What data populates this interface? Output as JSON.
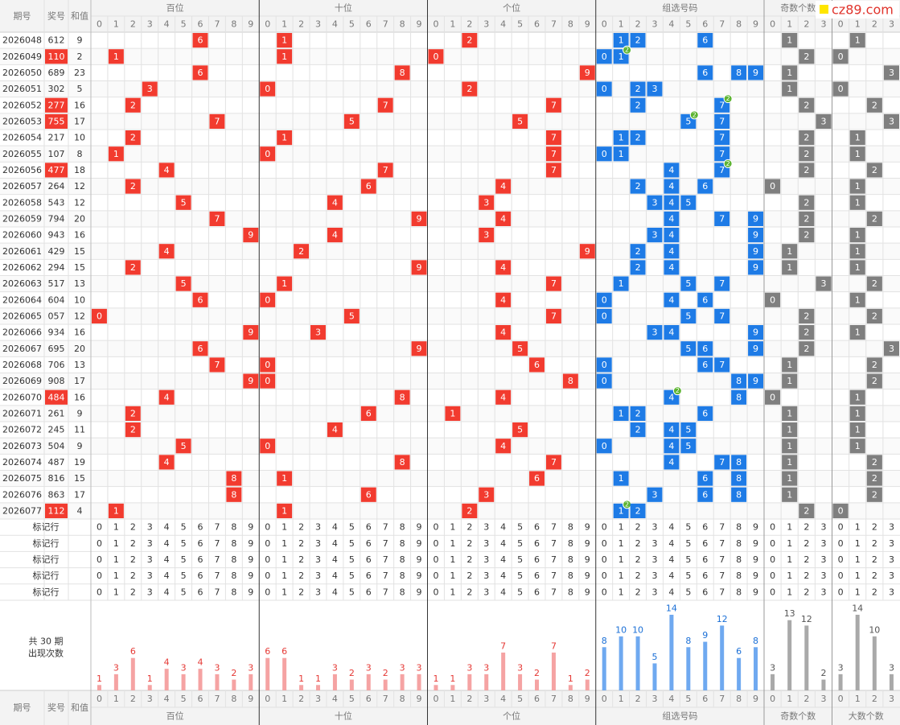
{
  "headers": {
    "issue": "期号",
    "number": "奖号",
    "sum": "和值",
    "groups": [
      "百位",
      "十位",
      "个位",
      "组选号码",
      "奇数个数",
      "大数个数"
    ]
  },
  "digits": [
    0,
    1,
    2,
    3,
    4,
    5,
    6,
    7,
    8,
    9
  ],
  "counts_axis": [
    0,
    1,
    2,
    3
  ],
  "marker_label": "标记行",
  "watermark": "cz89.com",
  "colors": {
    "position": "#f23b2f",
    "group": "#1e7be6",
    "count": "#7f7f7f",
    "badge": "#5db432",
    "position_bar": "#f5a3a3",
    "group_bar": "#6fa9f0",
    "count_bar": "#a9a9a9"
  },
  "draws": [
    {
      "issue": "2026048",
      "number": "612",
      "sum": 9,
      "digits": [
        6,
        1,
        2
      ],
      "odd": 1,
      "big": 1
    },
    {
      "issue": "2026049",
      "number": "110",
      "sum": 2,
      "digits": [
        1,
        1,
        0
      ],
      "odd": 2,
      "big": 0,
      "pair_count": 2
    },
    {
      "issue": "2026050",
      "number": "689",
      "sum": 23,
      "digits": [
        6,
        8,
        9
      ],
      "odd": 1,
      "big": 3
    },
    {
      "issue": "2026051",
      "number": "302",
      "sum": 5,
      "digits": [
        3,
        0,
        2
      ],
      "odd": 1,
      "big": 0
    },
    {
      "issue": "2026052",
      "number": "277",
      "sum": 16,
      "digits": [
        2,
        7,
        7
      ],
      "odd": 2,
      "big": 2,
      "pair_count": 2
    },
    {
      "issue": "2026053",
      "number": "755",
      "sum": 17,
      "digits": [
        7,
        5,
        5
      ],
      "odd": 3,
      "big": 3,
      "pair_count": 2
    },
    {
      "issue": "2026054",
      "number": "217",
      "sum": 10,
      "digits": [
        2,
        1,
        7
      ],
      "odd": 2,
      "big": 1
    },
    {
      "issue": "2026055",
      "number": "107",
      "sum": 8,
      "digits": [
        1,
        0,
        7
      ],
      "odd": 2,
      "big": 1
    },
    {
      "issue": "2026056",
      "number": "477",
      "sum": 18,
      "digits": [
        4,
        7,
        7
      ],
      "odd": 2,
      "big": 2,
      "pair_count": 2
    },
    {
      "issue": "2026057",
      "number": "264",
      "sum": 12,
      "digits": [
        2,
        6,
        4
      ],
      "odd": 0,
      "big": 1
    },
    {
      "issue": "2026058",
      "number": "543",
      "sum": 12,
      "digits": [
        5,
        4,
        3
      ],
      "odd": 2,
      "big": 1
    },
    {
      "issue": "2026059",
      "number": "794",
      "sum": 20,
      "digits": [
        7,
        9,
        4
      ],
      "odd": 2,
      "big": 2
    },
    {
      "issue": "2026060",
      "number": "943",
      "sum": 16,
      "digits": [
        9,
        4,
        3
      ],
      "odd": 2,
      "big": 1
    },
    {
      "issue": "2026061",
      "number": "429",
      "sum": 15,
      "digits": [
        4,
        2,
        9
      ],
      "odd": 1,
      "big": 1
    },
    {
      "issue": "2026062",
      "number": "294",
      "sum": 15,
      "digits": [
        2,
        9,
        4
      ],
      "odd": 1,
      "big": 1
    },
    {
      "issue": "2026063",
      "number": "517",
      "sum": 13,
      "digits": [
        5,
        1,
        7
      ],
      "odd": 3,
      "big": 2
    },
    {
      "issue": "2026064",
      "number": "604",
      "sum": 10,
      "digits": [
        6,
        0,
        4
      ],
      "odd": 0,
      "big": 1
    },
    {
      "issue": "2026065",
      "number": "057",
      "sum": 12,
      "digits": [
        0,
        5,
        7
      ],
      "odd": 2,
      "big": 2
    },
    {
      "issue": "2026066",
      "number": "934",
      "sum": 16,
      "digits": [
        9,
        3,
        4
      ],
      "odd": 2,
      "big": 1
    },
    {
      "issue": "2026067",
      "number": "695",
      "sum": 20,
      "digits": [
        6,
        9,
        5
      ],
      "odd": 2,
      "big": 3
    },
    {
      "issue": "2026068",
      "number": "706",
      "sum": 13,
      "digits": [
        7,
        0,
        6
      ],
      "odd": 1,
      "big": 2
    },
    {
      "issue": "2026069",
      "number": "908",
      "sum": 17,
      "digits": [
        9,
        0,
        8
      ],
      "odd": 1,
      "big": 2
    },
    {
      "issue": "2026070",
      "number": "484",
      "sum": 16,
      "digits": [
        4,
        8,
        4
      ],
      "odd": 0,
      "big": 1,
      "pair_count": 2
    },
    {
      "issue": "2026071",
      "number": "261",
      "sum": 9,
      "digits": [
        2,
        6,
        1
      ],
      "odd": 1,
      "big": 1
    },
    {
      "issue": "2026072",
      "number": "245",
      "sum": 11,
      "digits": [
        2,
        4,
        5
      ],
      "odd": 1,
      "big": 1
    },
    {
      "issue": "2026073",
      "number": "504",
      "sum": 9,
      "digits": [
        5,
        0,
        4
      ],
      "odd": 1,
      "big": 1
    },
    {
      "issue": "2026074",
      "number": "487",
      "sum": 19,
      "digits": [
        4,
        8,
        7
      ],
      "odd": 1,
      "big": 2
    },
    {
      "issue": "2026075",
      "number": "816",
      "sum": 15,
      "digits": [
        8,
        1,
        6
      ],
      "odd": 1,
      "big": 2
    },
    {
      "issue": "2026076",
      "number": "863",
      "sum": 17,
      "digits": [
        8,
        6,
        3
      ],
      "odd": 1,
      "big": 2
    },
    {
      "issue": "2026077",
      "number": "112",
      "sum": 4,
      "digits": [
        1,
        1,
        2
      ],
      "odd": 2,
      "big": 0,
      "pair_count": 2
    }
  ],
  "stats": {
    "label_lines": [
      "共 30 期",
      "出现次数"
    ],
    "hundreds": [
      1,
      3,
      6,
      1,
      4,
      3,
      4,
      3,
      2,
      3
    ],
    "tens": [
      6,
      6,
      1,
      1,
      3,
      2,
      3,
      2,
      3,
      3
    ],
    "units": [
      1,
      1,
      3,
      3,
      7,
      3,
      2,
      7,
      1,
      2
    ],
    "group": [
      8,
      10,
      10,
      5,
      14,
      8,
      9,
      12,
      6,
      8
    ],
    "odd": [
      3,
      13,
      12,
      2
    ],
    "big": [
      3,
      14,
      10,
      3
    ]
  }
}
